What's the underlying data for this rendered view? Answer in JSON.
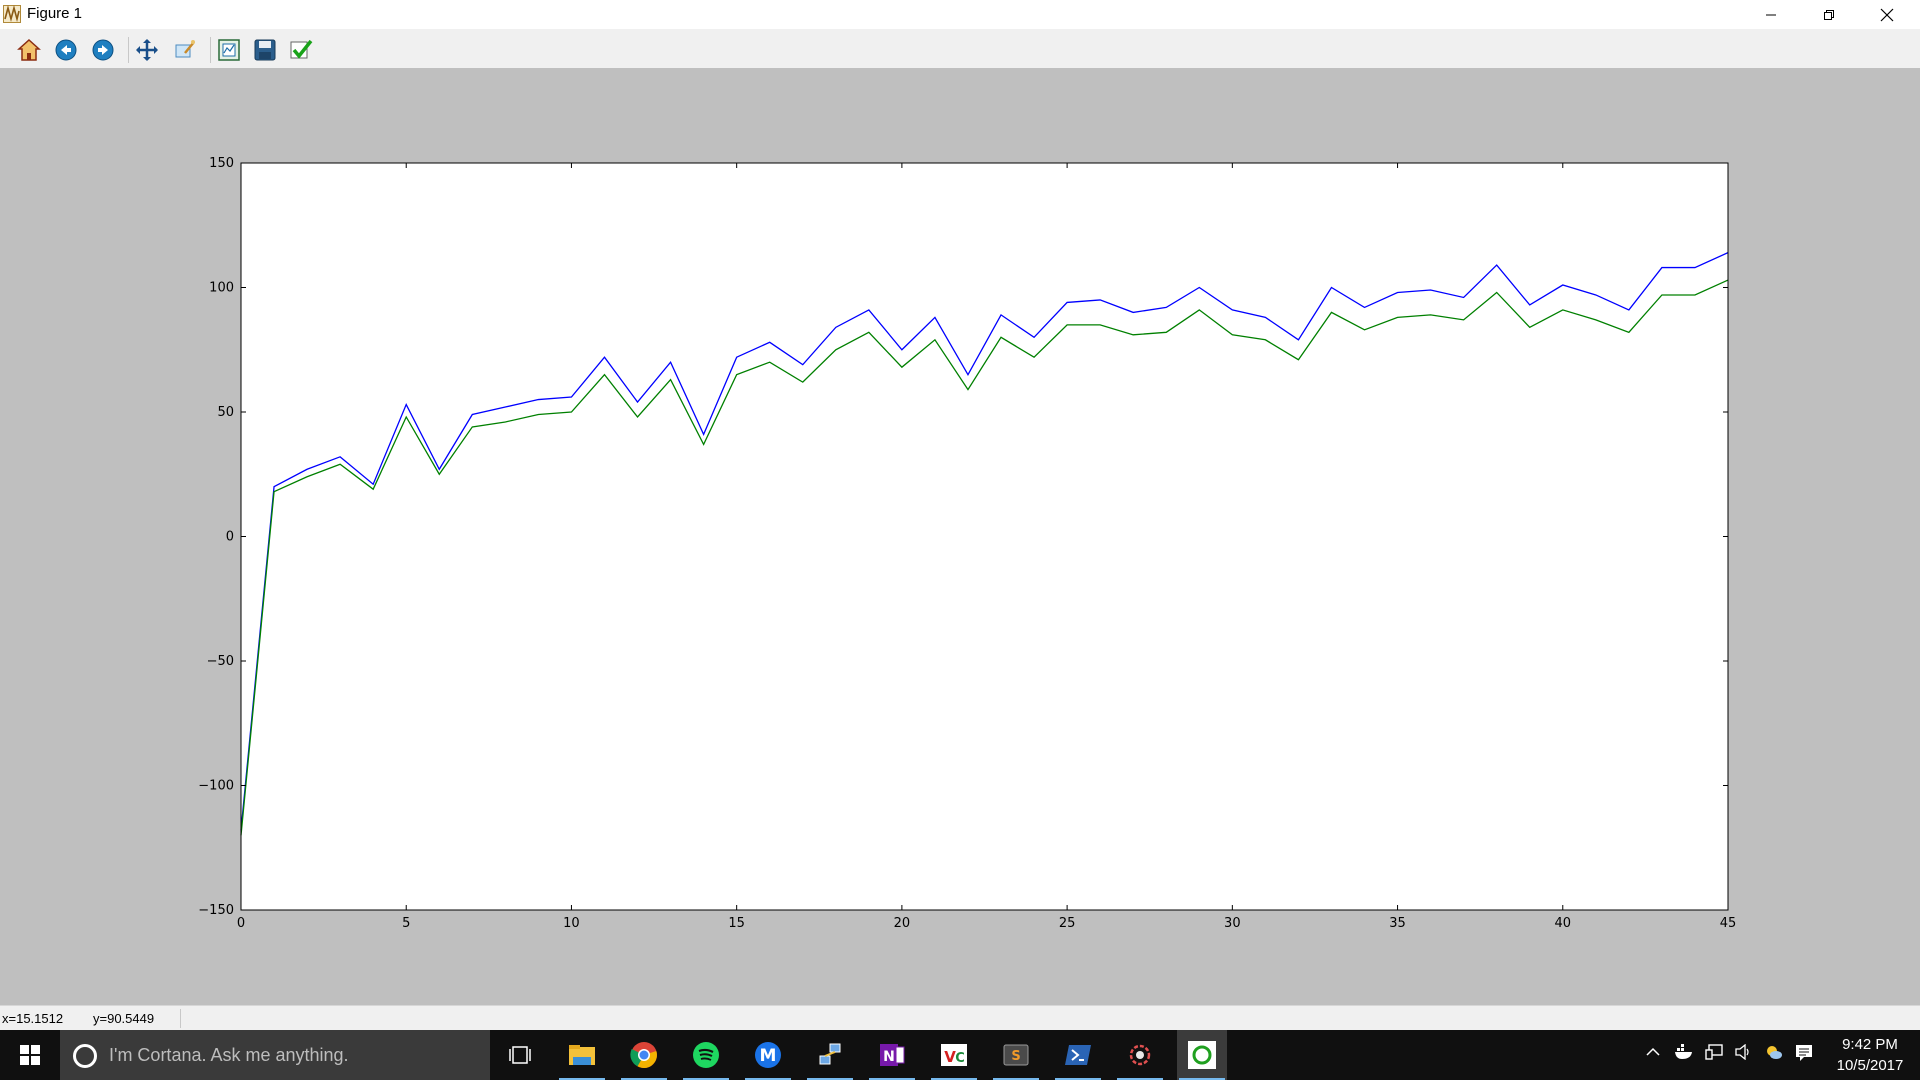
{
  "window": {
    "title": "Figure 1"
  },
  "toolbar": {
    "buttons": [
      {
        "name": "home-icon"
      },
      {
        "name": "back-icon"
      },
      {
        "name": "forward-icon"
      },
      {
        "name": "pan-icon"
      },
      {
        "name": "zoom-icon"
      },
      {
        "name": "subplots-icon"
      },
      {
        "name": "save-icon"
      },
      {
        "name": "customize-icon"
      }
    ]
  },
  "status": {
    "x": "x=15.1512",
    "y": "y=90.5449"
  },
  "colors": {
    "series1": "#0000ff",
    "series2": "#008000",
    "figure_bg": "#bfbfbf"
  },
  "chart_data": {
    "type": "line",
    "title": "",
    "xlabel": "",
    "ylabel": "",
    "xlim": [
      0,
      45
    ],
    "ylim": [
      -150,
      150
    ],
    "grid": false,
    "xticks": [
      0,
      5,
      10,
      15,
      20,
      25,
      30,
      35,
      40,
      45
    ],
    "yticks": [
      150,
      100,
      50,
      0,
      -50,
      -100,
      -150
    ],
    "ytick_labels": [
      "150",
      "100",
      "50",
      "0",
      "−50",
      "−100",
      "−150"
    ],
    "x": [
      0,
      1,
      2,
      3,
      4,
      5,
      6,
      7,
      8,
      9,
      10,
      11,
      12,
      13,
      14,
      15,
      16,
      17,
      18,
      19,
      20,
      21,
      22,
      23,
      24,
      25,
      26,
      27,
      28,
      29,
      30,
      31,
      32,
      33,
      34,
      35,
      36,
      37,
      38,
      39,
      40,
      41,
      42,
      43,
      44,
      45
    ],
    "series": [
      {
        "color": "#0000ff",
        "values": [
          -118,
          20,
          27,
          32,
          21,
          53,
          27,
          49,
          52,
          55,
          56,
          72,
          54,
          70,
          41,
          72,
          78,
          69,
          84,
          91,
          75,
          88,
          65,
          89,
          80,
          94,
          95,
          90,
          92,
          100,
          91,
          88,
          79,
          100,
          92,
          98,
          99,
          96,
          109,
          93,
          101,
          97,
          91,
          108,
          108,
          114
        ]
      },
      {
        "color": "#008000",
        "values": [
          -120,
          18,
          24,
          29,
          19,
          48,
          25,
          44,
          46,
          49,
          50,
          65,
          48,
          63,
          37,
          65,
          70,
          62,
          75,
          82,
          68,
          79,
          59,
          80,
          72,
          85,
          85,
          81,
          82,
          91,
          81,
          79,
          71,
          90,
          83,
          88,
          89,
          87,
          98,
          84,
          91,
          87,
          82,
          97,
          97,
          103
        ]
      }
    ]
  },
  "taskbar": {
    "search_placeholder": "I'm Cortana. Ask me anything.",
    "apps": [
      {
        "name": "task-view-icon"
      },
      {
        "name": "file-explorer-icon"
      },
      {
        "name": "chrome-icon"
      },
      {
        "name": "spotify-icon"
      },
      {
        "name": "mail-m-icon"
      },
      {
        "name": "network-app-icon"
      },
      {
        "name": "onenote-icon"
      },
      {
        "name": "vnc-icon"
      },
      {
        "name": "sublime-icon"
      },
      {
        "name": "powershell-icon"
      },
      {
        "name": "settings-app-icon"
      },
      {
        "name": "python-figure-icon"
      }
    ],
    "clock_time": "9:42 PM",
    "clock_date": "10/5/2017"
  }
}
